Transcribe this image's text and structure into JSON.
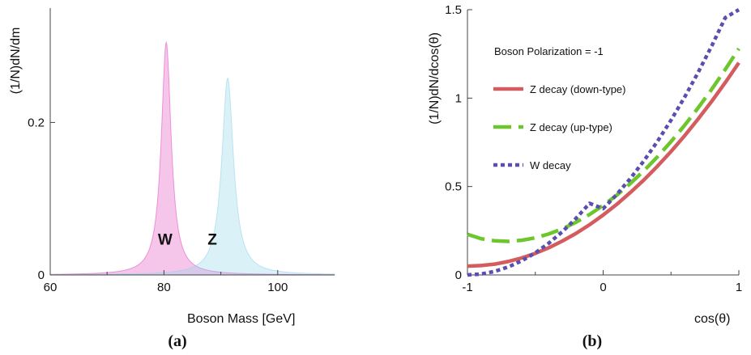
{
  "chart_data": [
    {
      "type": "area",
      "panel_label": "(a)",
      "xlabel": "Boson Mass [GeV]",
      "ylabel": "(1/N)dN/dm",
      "xlim": [
        60,
        110
      ],
      "ylim": [
        0,
        0.35
      ],
      "xticks": [
        60,
        80,
        100
      ],
      "xtick_labels": [
        "60",
        "80",
        "100"
      ],
      "yticks": [
        0,
        0.2
      ],
      "ytick_labels": [
        "0",
        "0.2"
      ],
      "grid": false,
      "series": [
        {
          "label": "W",
          "peak_x": 80.4,
          "peak_y": 0.305,
          "width": 2.1,
          "color": "#e24fbf",
          "fill_opacity": 0.32
        },
        {
          "label": "Z",
          "peak_x": 91.2,
          "peak_y": 0.258,
          "width": 2.5,
          "color": "#8fd3ea",
          "fill_opacity": 0.32
        }
      ],
      "annotations": [
        {
          "text": "W",
          "x": 80.2,
          "y": 0.04
        },
        {
          "text": "Z",
          "x": 88.5,
          "y": 0.04
        }
      ]
    },
    {
      "type": "line",
      "panel_label": "(b)",
      "xlabel": "cos(θ)",
      "ylabel": "(1/N)dN/dcos(θ)",
      "title": "Boson Polarization = -1",
      "xlim": [
        -1,
        1
      ],
      "ylim": [
        0,
        1.5
      ],
      "xticks": [
        -1,
        0,
        1
      ],
      "xtick_labels": [
        "-1",
        "0",
        "1"
      ],
      "yticks": [
        0,
        0.5,
        1,
        1.5
      ],
      "ytick_labels": [
        "0",
        "0.5",
        "1",
        "1.5"
      ],
      "grid": false,
      "legend_position": "top-left",
      "x": [
        -1.0,
        -0.9,
        -0.8,
        -0.7,
        -0.6,
        -0.5,
        -0.4,
        -0.3,
        -0.2,
        -0.1,
        0.0,
        0.1,
        0.2,
        0.3,
        0.4,
        0.5,
        0.6,
        0.7,
        0.8,
        0.9,
        1.0
      ],
      "series": [
        {
          "name": "Z decay (down-type)",
          "color": "#d45b5e",
          "style": "solid",
          "values": [
            0.05,
            0.053,
            0.061,
            0.076,
            0.096,
            0.122,
            0.154,
            0.192,
            0.235,
            0.284,
            0.339,
            0.399,
            0.466,
            0.537,
            0.615,
            0.698,
            0.787,
            0.882,
            0.982,
            1.088,
            1.2
          ]
        },
        {
          "name": "Z decay (up-type)",
          "color": "#6cc62c",
          "style": "dashed",
          "values": [
            0.23,
            0.205,
            0.193,
            0.19,
            0.196,
            0.21,
            0.232,
            0.261,
            0.298,
            0.342,
            0.393,
            0.451,
            0.517,
            0.589,
            0.668,
            0.754,
            0.846,
            0.945,
            1.05,
            1.162,
            1.28
          ]
        },
        {
          "name": "W decay",
          "color": "#5a4fb0",
          "style": "dotted",
          "values": [
            0.0,
            0.005,
            0.02,
            0.045,
            0.08,
            0.125,
            0.18,
            0.245,
            0.32,
            0.405,
            0.375,
            0.455,
            0.545,
            0.645,
            0.755,
            0.875,
            1.005,
            1.145,
            1.295,
            1.455,
            1.5
          ]
        }
      ]
    }
  ]
}
